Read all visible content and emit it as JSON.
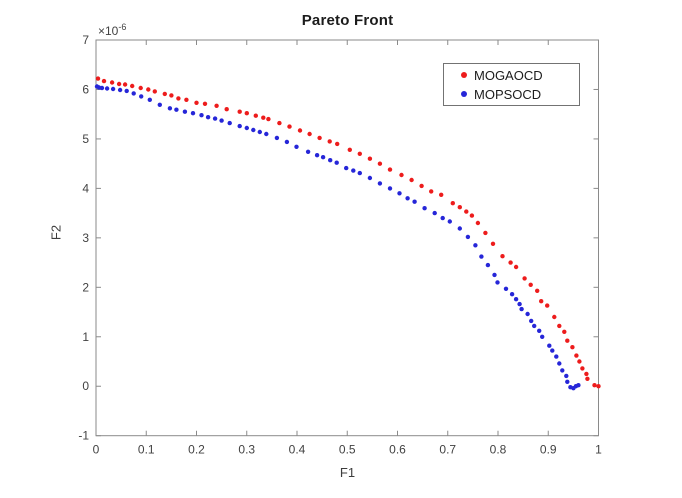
{
  "chart_data": {
    "type": "scatter",
    "title": "Pareto Front",
    "xlabel": "F1",
    "ylabel": "F2",
    "y_scale": {
      "base": "×10",
      "exponent": "-6"
    },
    "xlim": [
      0,
      1
    ],
    "ylim": [
      -1,
      7
    ],
    "xtick_labels": [
      "0",
      "0.1",
      "0.2",
      "0.3",
      "0.4",
      "0.5",
      "0.6",
      "0.7",
      "0.8",
      "0.9",
      "1"
    ],
    "ytick_labels": [
      "-1",
      "0",
      "1",
      "2",
      "3",
      "4",
      "5",
      "6",
      "7"
    ],
    "grid": false,
    "box": true,
    "tick_direction": "in",
    "axis_color": "#8a8a8a",
    "tick_label_color": "#424242",
    "legend_position": "northeast",
    "series": [
      {
        "name": "MOGAOCD",
        "color": "#ed1c1c",
        "marker": "dot",
        "points": [
          [
            0.004,
            6.22
          ],
          [
            0.016,
            6.17
          ],
          [
            0.032,
            6.14
          ],
          [
            0.046,
            6.11
          ],
          [
            0.058,
            6.1
          ],
          [
            0.072,
            6.07
          ],
          [
            0.089,
            6.03
          ],
          [
            0.104,
            6.0
          ],
          [
            0.117,
            5.96
          ],
          [
            0.137,
            5.91
          ],
          [
            0.15,
            5.88
          ],
          [
            0.164,
            5.82
          ],
          [
            0.18,
            5.79
          ],
          [
            0.2,
            5.73
          ],
          [
            0.217,
            5.71
          ],
          [
            0.24,
            5.67
          ],
          [
            0.26,
            5.6
          ],
          [
            0.286,
            5.55
          ],
          [
            0.3,
            5.52
          ],
          [
            0.318,
            5.47
          ],
          [
            0.333,
            5.43
          ],
          [
            0.343,
            5.4
          ],
          [
            0.365,
            5.32
          ],
          [
            0.385,
            5.25
          ],
          [
            0.406,
            5.17
          ],
          [
            0.425,
            5.1
          ],
          [
            0.445,
            5.02
          ],
          [
            0.465,
            4.95
          ],
          [
            0.48,
            4.9
          ],
          [
            0.505,
            4.78
          ],
          [
            0.525,
            4.7
          ],
          [
            0.545,
            4.6
          ],
          [
            0.565,
            4.5
          ],
          [
            0.585,
            4.38
          ],
          [
            0.608,
            4.27
          ],
          [
            0.628,
            4.17
          ],
          [
            0.648,
            4.05
          ],
          [
            0.667,
            3.94
          ],
          [
            0.687,
            3.87
          ],
          [
            0.71,
            3.7
          ],
          [
            0.724,
            3.62
          ],
          [
            0.737,
            3.53
          ],
          [
            0.748,
            3.45
          ],
          [
            0.76,
            3.3
          ],
          [
            0.775,
            3.1
          ],
          [
            0.79,
            2.88
          ],
          [
            0.809,
            2.63
          ],
          [
            0.825,
            2.5
          ],
          [
            0.836,
            2.41
          ],
          [
            0.853,
            2.18
          ],
          [
            0.865,
            2.05
          ],
          [
            0.878,
            1.93
          ],
          [
            0.886,
            1.72
          ],
          [
            0.898,
            1.63
          ],
          [
            0.912,
            1.4
          ],
          [
            0.922,
            1.22
          ],
          [
            0.932,
            1.1
          ],
          [
            0.938,
            0.92
          ],
          [
            0.948,
            0.79
          ],
          [
            0.956,
            0.62
          ],
          [
            0.962,
            0.5
          ],
          [
            0.968,
            0.36
          ],
          [
            0.976,
            0.25
          ],
          [
            0.978,
            0.15
          ],
          [
            0.992,
            0.02
          ],
          [
            1.0,
            0.0
          ]
        ]
      },
      {
        "name": "MOPSOCD",
        "color": "#2626d8",
        "marker": "dot",
        "points": [
          [
            0.002,
            6.06
          ],
          [
            0.006,
            6.04
          ],
          [
            0.012,
            6.03
          ],
          [
            0.022,
            6.02
          ],
          [
            0.034,
            6.01
          ],
          [
            0.048,
            5.99
          ],
          [
            0.061,
            5.97
          ],
          [
            0.075,
            5.92
          ],
          [
            0.09,
            5.86
          ],
          [
            0.107,
            5.79
          ],
          [
            0.127,
            5.69
          ],
          [
            0.147,
            5.62
          ],
          [
            0.16,
            5.59
          ],
          [
            0.177,
            5.55
          ],
          [
            0.193,
            5.52
          ],
          [
            0.21,
            5.48
          ],
          [
            0.223,
            5.44
          ],
          [
            0.237,
            5.41
          ],
          [
            0.25,
            5.37
          ],
          [
            0.266,
            5.32
          ],
          [
            0.286,
            5.26
          ],
          [
            0.3,
            5.22
          ],
          [
            0.313,
            5.18
          ],
          [
            0.326,
            5.14
          ],
          [
            0.339,
            5.1
          ],
          [
            0.36,
            5.02
          ],
          [
            0.38,
            4.94
          ],
          [
            0.399,
            4.84
          ],
          [
            0.422,
            4.74
          ],
          [
            0.44,
            4.67
          ],
          [
            0.452,
            4.63
          ],
          [
            0.466,
            4.57
          ],
          [
            0.479,
            4.52
          ],
          [
            0.498,
            4.41
          ],
          [
            0.512,
            4.36
          ],
          [
            0.525,
            4.31
          ],
          [
            0.545,
            4.21
          ],
          [
            0.565,
            4.1
          ],
          [
            0.585,
            4.0
          ],
          [
            0.604,
            3.9
          ],
          [
            0.62,
            3.8
          ],
          [
            0.634,
            3.73
          ],
          [
            0.654,
            3.6
          ],
          [
            0.674,
            3.5
          ],
          [
            0.69,
            3.4
          ],
          [
            0.704,
            3.33
          ],
          [
            0.724,
            3.19
          ],
          [
            0.74,
            3.02
          ],
          [
            0.755,
            2.85
          ],
          [
            0.767,
            2.62
          ],
          [
            0.78,
            2.45
          ],
          [
            0.793,
            2.25
          ],
          [
            0.799,
            2.1
          ],
          [
            0.816,
            1.97
          ],
          [
            0.828,
            1.86
          ],
          [
            0.836,
            1.76
          ],
          [
            0.843,
            1.66
          ],
          [
            0.847,
            1.56
          ],
          [
            0.859,
            1.46
          ],
          [
            0.866,
            1.32
          ],
          [
            0.872,
            1.22
          ],
          [
            0.882,
            1.12
          ],
          [
            0.888,
            1.0
          ],
          [
            0.902,
            0.82
          ],
          [
            0.908,
            0.72
          ],
          [
            0.916,
            0.6
          ],
          [
            0.922,
            0.46
          ],
          [
            0.928,
            0.32
          ],
          [
            0.936,
            0.21
          ],
          [
            0.938,
            0.09
          ],
          [
            0.944,
            -0.02
          ],
          [
            0.95,
            -0.04
          ],
          [
            0.955,
            0.0
          ],
          [
            0.96,
            0.02
          ]
        ]
      }
    ]
  }
}
